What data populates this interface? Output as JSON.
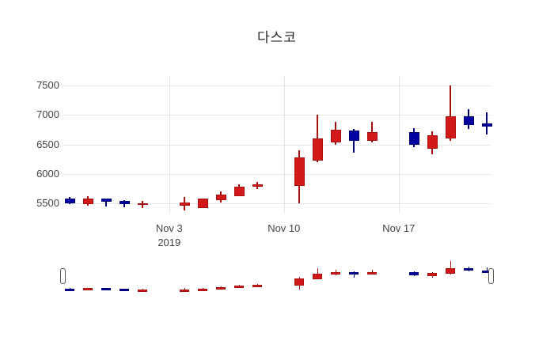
{
  "chart_data": {
    "type": "candlestick",
    "title": "다스코",
    "xlabel": "",
    "ylabel": "",
    "y_ticks": [
      5500,
      6000,
      6500,
      7000,
      7500
    ],
    "ylim": [
      5330,
      7675
    ],
    "grid": true,
    "x_ticks": [
      {
        "label": "Nov 3",
        "sublabel": "2019"
      },
      {
        "label": "Nov 10",
        "sublabel": ""
      },
      {
        "label": "Nov 17",
        "sublabel": ""
      }
    ],
    "colors": {
      "increasing": "#d21818",
      "increasing_line": "#a81010",
      "decreasing": "#0000a0",
      "decreasing_line": "#000078",
      "grid": "#e6e6e6",
      "tick_text": "#444444"
    },
    "rangeslider": true,
    "candles": [
      {
        "date": "2019-10-28",
        "open": 5580,
        "high": 5610,
        "low": 5490,
        "close": 5500
      },
      {
        "date": "2019-10-29",
        "open": 5490,
        "high": 5620,
        "low": 5460,
        "close": 5590
      },
      {
        "date": "2019-10-30",
        "open": 5585,
        "high": 5590,
        "low": 5450,
        "close": 5530
      },
      {
        "date": "2019-10-31",
        "open": 5550,
        "high": 5560,
        "low": 5440,
        "close": 5495
      },
      {
        "date": "2019-11-01",
        "open": 5480,
        "high": 5550,
        "low": 5420,
        "close": 5505
      },
      {
        "date": "2019-11-04",
        "open": 5470,
        "high": 5610,
        "low": 5390,
        "close": 5520
      },
      {
        "date": "2019-11-05",
        "open": 5430,
        "high": 5590,
        "low": 5420,
        "close": 5580
      },
      {
        "date": "2019-11-06",
        "open": 5560,
        "high": 5700,
        "low": 5520,
        "close": 5650
      },
      {
        "date": "2019-11-07",
        "open": 5630,
        "high": 5830,
        "low": 5620,
        "close": 5785
      },
      {
        "date": "2019-11-08",
        "open": 5790,
        "high": 5870,
        "low": 5740,
        "close": 5830
      },
      {
        "date": "2019-11-11",
        "open": 5800,
        "high": 6400,
        "low": 5510,
        "close": 6280
      },
      {
        "date": "2019-11-12",
        "open": 6230,
        "high": 7000,
        "low": 6200,
        "close": 6600
      },
      {
        "date": "2019-11-13",
        "open": 6540,
        "high": 6890,
        "low": 6490,
        "close": 6750
      },
      {
        "date": "2019-11-14",
        "open": 6740,
        "high": 6760,
        "low": 6360,
        "close": 6560
      },
      {
        "date": "2019-11-15",
        "open": 6560,
        "high": 6880,
        "low": 6540,
        "close": 6710
      },
      {
        "date": "2019-11-18",
        "open": 6710,
        "high": 6780,
        "low": 6450,
        "close": 6500
      },
      {
        "date": "2019-11-19",
        "open": 6430,
        "high": 6720,
        "low": 6340,
        "close": 6650
      },
      {
        "date": "2019-11-20",
        "open": 6600,
        "high": 7500,
        "low": 6560,
        "close": 6980
      },
      {
        "date": "2019-11-21",
        "open": 6980,
        "high": 7100,
        "low": 6760,
        "close": 6830
      },
      {
        "date": "2019-11-22",
        "open": 6860,
        "high": 7050,
        "low": 6670,
        "close": 6810
      }
    ]
  }
}
